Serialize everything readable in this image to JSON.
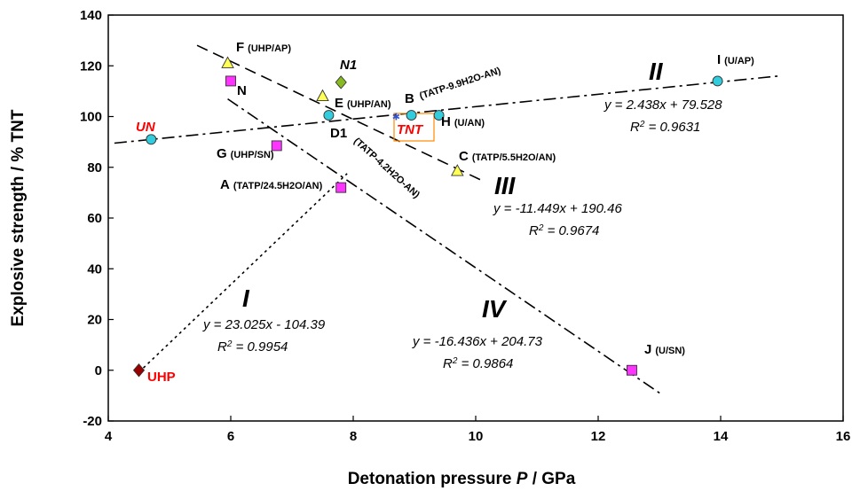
{
  "chart_data": {
    "type": "scatter",
    "xlabel_pre": "Detonation pressure ",
    "xlabel_var": "P",
    "xlabel_post": " / GPa",
    "ylabel": "Explosive strength / % TNT",
    "xlim": [
      4,
      16
    ],
    "ylim": [
      -20,
      140
    ],
    "xticks": [
      "4",
      "6",
      "8",
      "10",
      "12",
      "14",
      "16"
    ],
    "yticks": [
      "-20",
      "0",
      "20",
      "40",
      "60",
      "80",
      "100",
      "120",
      "140"
    ],
    "grid": false,
    "points": [
      {
        "id": "UN",
        "label": "UN",
        "x": 4.7,
        "y": 91,
        "marker": "circle",
        "color": "#33ccdd"
      },
      {
        "id": "UHP",
        "label": "UHP",
        "x": 4.5,
        "y": 0,
        "marker": "diamond",
        "color": "#990000"
      },
      {
        "id": "F",
        "label": "F",
        "sub": "(UHP/AP)",
        "x": 5.95,
        "y": 121,
        "marker": "triangle",
        "color": "#ffff55"
      },
      {
        "id": "N",
        "label": "N",
        "x": 6.0,
        "y": 114,
        "marker": "square",
        "color": "#ff33ff"
      },
      {
        "id": "N1",
        "label": "N1",
        "x": 7.8,
        "y": 113.5,
        "marker": "diamond",
        "color": "#88bb22"
      },
      {
        "id": "E",
        "label": "E",
        "sub": "(UHP/AN)",
        "x": 7.5,
        "y": 108,
        "marker": "triangle",
        "color": "#ffff55"
      },
      {
        "id": "D1",
        "label": "D1",
        "sub": "(TATP-4.2H2O-AN)",
        "x": 7.6,
        "y": 100.5,
        "marker": "circle",
        "color": "#33ccdd"
      },
      {
        "id": "G",
        "label": "G",
        "sub": "(UHP/SN)",
        "x": 6.75,
        "y": 88.5,
        "marker": "square",
        "color": "#ff33ff"
      },
      {
        "id": "A",
        "label": "A",
        "sub": "(TATP/24.5H2O/AN)",
        "x": 7.8,
        "y": 72,
        "marker": "square",
        "color": "#ff33ff"
      },
      {
        "id": "B",
        "label": "B",
        "sub": "(TATP-9.9H2O-AN)",
        "x": 8.95,
        "y": 100.5,
        "marker": "circle",
        "color": "#33ccdd"
      },
      {
        "id": "TNT",
        "label": "TNT",
        "x": 8.7,
        "y": 100,
        "marker": "star",
        "color": "#3355cc"
      },
      {
        "id": "H",
        "label": "H",
        "sub": "(U/AN)",
        "x": 9.4,
        "y": 100.5,
        "marker": "circle",
        "color": "#33ccdd"
      },
      {
        "id": "C",
        "label": "C",
        "sub": "(TATP/5.5H2O/AN)",
        "x": 9.7,
        "y": 78.5,
        "marker": "triangle",
        "color": "#ffff55"
      },
      {
        "id": "I",
        "label": "I",
        "sub": "(U/AP)",
        "x": 13.95,
        "y": 114,
        "marker": "circle",
        "color": "#33ccdd"
      },
      {
        "id": "J",
        "label": "J",
        "sub": "(U/SN)",
        "x": 12.55,
        "y": 0,
        "marker": "square",
        "color": "#ff33ff"
      }
    ],
    "fits": [
      {
        "id": "I",
        "roman": "I",
        "slope": 23.025,
        "intercept": -104.39,
        "x_range": [
          4.5,
          7.9
        ],
        "dash": "3,4",
        "equation": "y = 23.025x - 104.39",
        "r2": "= 0.9954"
      },
      {
        "id": "II",
        "roman": "II",
        "slope": 2.438,
        "intercept": 79.528,
        "x_range": [
          4.1,
          15.0
        ],
        "dash": "14,5,3,5",
        "equation": "y = 2.438x + 79.528",
        "r2": "= 0.9631"
      },
      {
        "id": "III",
        "roman": "III",
        "slope": -11.449,
        "intercept": 190.46,
        "x_range": [
          5.45,
          10.1
        ],
        "dash": "13,7",
        "equation": "y = -11.449x + 190.46",
        "r2": "= 0.9674"
      },
      {
        "id": "IV",
        "roman": "IV",
        "slope": -16.436,
        "intercept": 204.73,
        "x_range": [
          5.95,
          13.05
        ],
        "dash": "14,5,3,5",
        "equation": "y = -16.436x + 204.73",
        "r2": "= 0.9864"
      }
    ],
    "tnt_box": true
  }
}
